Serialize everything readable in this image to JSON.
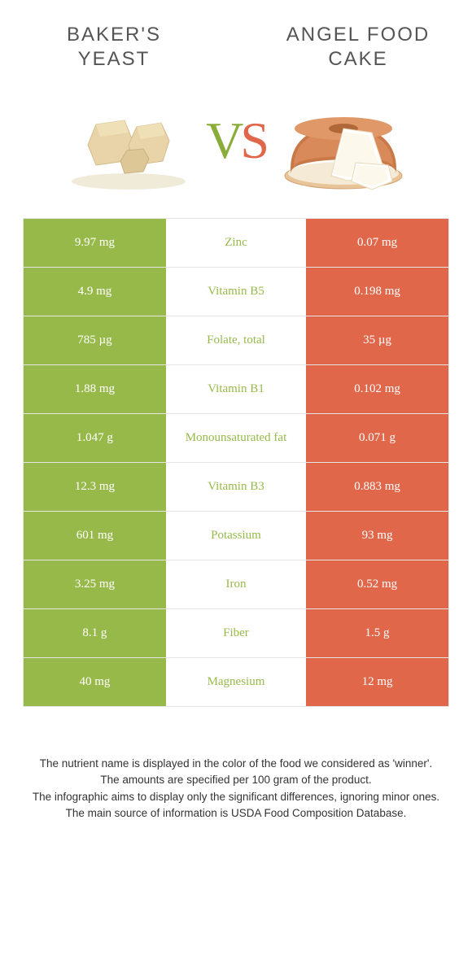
{
  "colors": {
    "left": "#97b94a",
    "right": "#e0674a",
    "mid_left_text": "#97b94a",
    "mid_right_text": "#e0674a"
  },
  "header": {
    "left_title": "Baker's yeast",
    "right_title": "Angel food cake"
  },
  "vs": {
    "v": "V",
    "s": "S"
  },
  "rows": [
    {
      "left": "9.97 mg",
      "mid": "Zinc",
      "right": "0.07 mg",
      "winner": "left"
    },
    {
      "left": "4.9 mg",
      "mid": "Vitamin B5",
      "right": "0.198 mg",
      "winner": "left"
    },
    {
      "left": "785 µg",
      "mid": "Folate, total",
      "right": "35 µg",
      "winner": "left"
    },
    {
      "left": "1.88 mg",
      "mid": "Vitamin B1",
      "right": "0.102 mg",
      "winner": "left"
    },
    {
      "left": "1.047 g",
      "mid": "Monounsaturated fat",
      "right": "0.071 g",
      "winner": "left"
    },
    {
      "left": "12.3 mg",
      "mid": "Vitamin B3",
      "right": "0.883 mg",
      "winner": "left"
    },
    {
      "left": "601 mg",
      "mid": "Potassium",
      "right": "93 mg",
      "winner": "left"
    },
    {
      "left": "3.25 mg",
      "mid": "Iron",
      "right": "0.52 mg",
      "winner": "left"
    },
    {
      "left": "8.1 g",
      "mid": "Fiber",
      "right": "1.5 g",
      "winner": "left"
    },
    {
      "left": "40 mg",
      "mid": "Magnesium",
      "right": "12 mg",
      "winner": "left"
    }
  ],
  "footer": {
    "l1": "The nutrient name is displayed in the color of the food we considered as 'winner'.",
    "l2": "The amounts are specified per 100 gram of the product.",
    "l3": "The infographic aims to display only the significant differences, ignoring minor ones.",
    "l4": "The main source of information is USDA Food Composition Database."
  }
}
